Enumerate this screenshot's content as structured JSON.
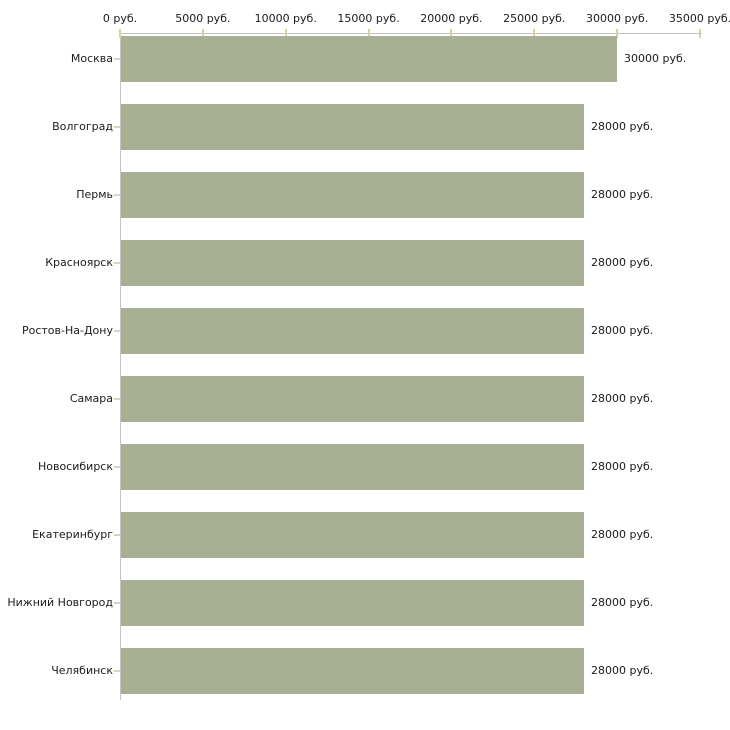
{
  "chart_data": {
    "type": "bar",
    "orientation": "horizontal",
    "title": "",
    "categories": [
      "Москва",
      "Волгоград",
      "Пермь",
      "Красноярск",
      "Ростов-На-Дону",
      "Самара",
      "Новосибирск",
      "Екатеринбург",
      "Нижний Новгород",
      "Челябинск"
    ],
    "values": [
      30000,
      28000,
      28000,
      28000,
      28000,
      28000,
      28000,
      28000,
      28000,
      28000
    ],
    "value_labels": [
      "30000 руб.",
      "28000 руб.",
      "28000 руб.",
      "28000 руб.",
      "28000 руб.",
      "28000 руб.",
      "28000 руб.",
      "28000 руб.",
      "28000 руб.",
      "28000 руб."
    ],
    "unit": "руб.",
    "x_axis": {
      "position": "top",
      "min": 0,
      "max": 35000,
      "ticks": [
        0,
        5000,
        10000,
        15000,
        20000,
        25000,
        30000,
        35000
      ],
      "tick_labels": [
        "0 руб.",
        "5000 руб.",
        "10000 руб.",
        "15000 руб.",
        "20000 руб.",
        "25000 руб.",
        "30000 руб.",
        "35000 руб."
      ]
    },
    "grid": false,
    "legend": false
  },
  "style": {
    "bar_color": "#a8b094",
    "axis_line_color": "#c3c3c3",
    "x_tick_mark_color": "#d2d5a4",
    "category_tick_mark_color": "#d6d8bb",
    "text_color": "#1b1b1b",
    "background_color": "#ffffff"
  }
}
